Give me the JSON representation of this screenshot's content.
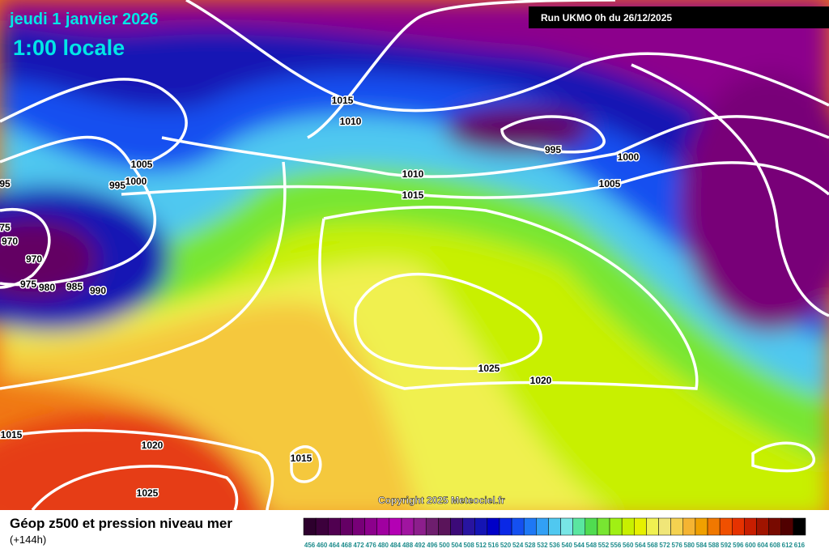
{
  "header": {
    "date": "jeudi 1 janvier 2026",
    "time": "1:00 locale",
    "run": "Run UKMO 0h du 26/12/2025"
  },
  "copyright": "Copyright 2025 Meteociel.fr",
  "isobar_labels": [
    "1015",
    "1010",
    "995",
    "1000",
    "1005",
    "1010",
    "1015",
    "1005",
    "995",
    "1000",
    "95",
    "75",
    "970",
    "970",
    "975",
    "980",
    "985",
    "990",
    "1025",
    "1020",
    "1015",
    "1020",
    "1015",
    "1025"
  ],
  "legend": {
    "title": "Géop z500 et pression niveau mer",
    "subtitle": "(+144h)",
    "scale": [
      456,
      460,
      464,
      468,
      472,
      476,
      480,
      484,
      488,
      492,
      496,
      500,
      504,
      508,
      512,
      516,
      520,
      524,
      528,
      532,
      536,
      540,
      544,
      548,
      552,
      556,
      560,
      564,
      568,
      572,
      576,
      580,
      584,
      588,
      592,
      596,
      600,
      604,
      608,
      612,
      616
    ],
    "colors": [
      "#2d002d",
      "#3c003c",
      "#500050",
      "#640064",
      "#780078",
      "#8c008c",
      "#a000a0",
      "#b400b4",
      "#a014a0",
      "#8c1e8c",
      "#6e1e6e",
      "#5a145a",
      "#3c0a78",
      "#2814a0",
      "#1414b4",
      "#0000c8",
      "#0a28e6",
      "#1450f0",
      "#1e78f5",
      "#32a0f5",
      "#50c8f0",
      "#78e6e6",
      "#5ae6a0",
      "#50dc50",
      "#78e632",
      "#a0f014",
      "#c8f000",
      "#e6f000",
      "#f0f050",
      "#f0e678",
      "#f5d250",
      "#f5b432",
      "#f0a000",
      "#f07800",
      "#f05000",
      "#e63200",
      "#c81e00",
      "#a01400",
      "#780a00",
      "#500000",
      "#000000"
    ]
  }
}
